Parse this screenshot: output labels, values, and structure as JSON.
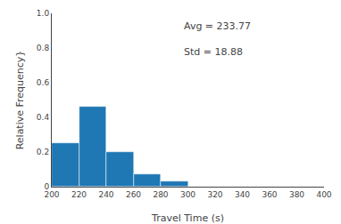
{
  "chart_data": {
    "type": "histogram",
    "bins": [
      200,
      220,
      240,
      260,
      280,
      300,
      320,
      340,
      360,
      380,
      400
    ],
    "values": [
      0.25,
      0.46,
      0.2,
      0.07,
      0.03,
      0.0,
      0.0,
      0.0,
      0.0,
      0.0
    ],
    "color": "#1f77b4",
    "xlabel": "Travel Time (s)",
    "ylabel": "Relative Frequency}",
    "xlim": [
      200,
      400
    ],
    "ylim": [
      0,
      1.0
    ],
    "xticks": [
      200,
      220,
      240,
      260,
      280,
      300,
      320,
      340,
      360,
      380,
      400
    ],
    "yticks": [
      0.0,
      0.2,
      0.4,
      0.6,
      0.8,
      {
        "value": 1.0,
        "label": "1.0"
      }
    ],
    "annotations": [
      "Avg = 233.77",
      "Std = 18.88"
    ],
    "grid": false
  }
}
